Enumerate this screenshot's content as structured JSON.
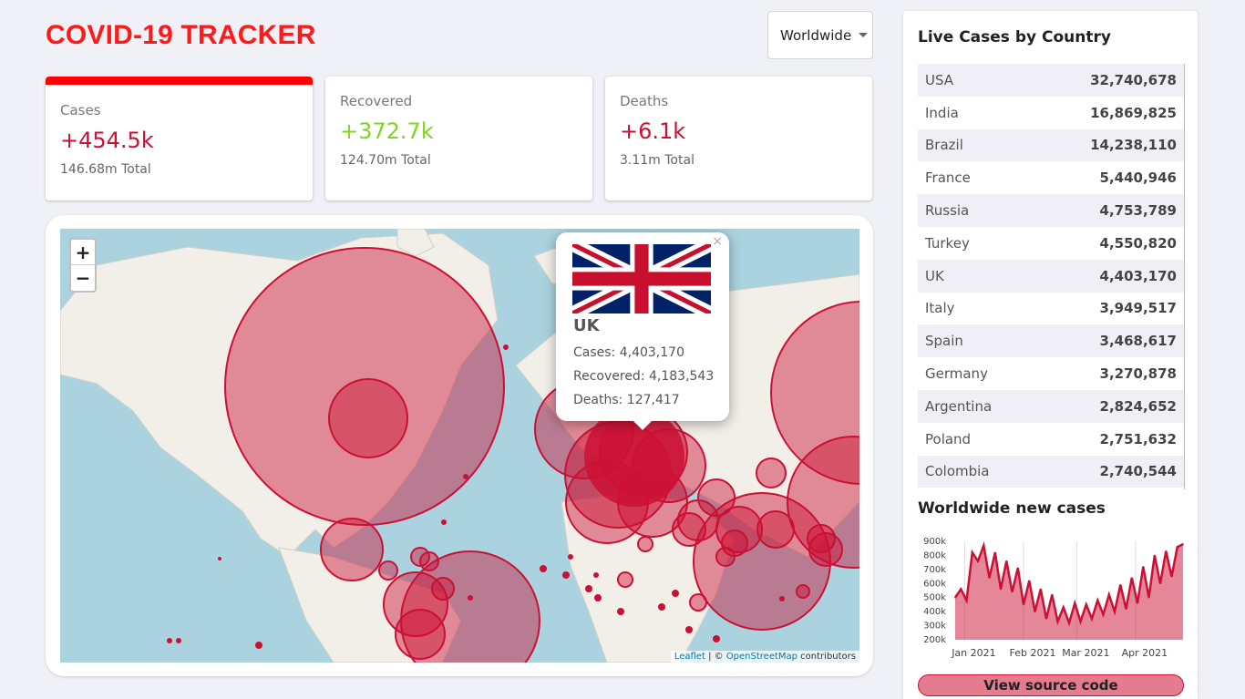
{
  "app": {
    "title": "COVID-19 TRACKER"
  },
  "dropdown": {
    "selected": "Worldwide"
  },
  "cards": [
    {
      "label": "Cases",
      "value": "+454.5k",
      "total": "146.68m Total"
    },
    {
      "label": "Recovered",
      "value": "+372.7k",
      "total": "124.70m Total"
    },
    {
      "label": "Deaths",
      "value": "+6.1k",
      "total": "3.11m Total"
    }
  ],
  "map": {
    "zoom_in": "+",
    "zoom_out": "−",
    "popup": {
      "close": "×",
      "country": "UK",
      "cases": "Cases: 4,403,170",
      "recovered": "Recovered: 4,183,543",
      "deaths": "Deaths: 127,417"
    },
    "attribution": {
      "leaflet": "Leaflet",
      "separator": " | © ",
      "osm": "OpenStreetMap",
      "suffix": " contributors"
    }
  },
  "sidebar": {
    "live_title": "Live Cases by Country",
    "countries": [
      {
        "name": "USA",
        "cases": "32,740,678"
      },
      {
        "name": "India",
        "cases": "16,869,825"
      },
      {
        "name": "Brazil",
        "cases": "14,238,110"
      },
      {
        "name": "France",
        "cases": "5,440,946"
      },
      {
        "name": "Russia",
        "cases": "4,753,789"
      },
      {
        "name": "Turkey",
        "cases": "4,550,820"
      },
      {
        "name": "UK",
        "cases": "4,403,170"
      },
      {
        "name": "Italy",
        "cases": "3,949,517"
      },
      {
        "name": "Spain",
        "cases": "3,468,617"
      },
      {
        "name": "Germany",
        "cases": "3,270,878"
      },
      {
        "name": "Argentina",
        "cases": "2,824,652"
      },
      {
        "name": "Poland",
        "cases": "2,751,632"
      },
      {
        "name": "Colombia",
        "cases": "2,740,544"
      }
    ],
    "chart_title": "Worldwide new cases",
    "source_button": "View source code"
  },
  "colors": {
    "accent": "#ff1a1a",
    "cases": "#cc1034",
    "recovered": "#7dd71d",
    "bubble": "#cc1034"
  },
  "chart_data": {
    "type": "area",
    "title": "Worldwide new cases",
    "xlabel": "",
    "ylabel": "",
    "x_ticks": [
      "Jan 2021",
      "Feb 2021",
      "Mar 2021",
      "Apr 2021"
    ],
    "y_ticks": [
      "200k",
      "300k",
      "400k",
      "500k",
      "600k",
      "700k",
      "800k",
      "900k"
    ],
    "ylim": [
      200000,
      900000
    ],
    "x": [
      "2020-12-27",
      "2020-12-30",
      "2021-01-02",
      "2021-01-05",
      "2021-01-08",
      "2021-01-11",
      "2021-01-14",
      "2021-01-17",
      "2021-01-20",
      "2021-01-23",
      "2021-01-26",
      "2021-01-29",
      "2021-02-01",
      "2021-02-04",
      "2021-02-07",
      "2021-02-10",
      "2021-02-13",
      "2021-02-16",
      "2021-02-19",
      "2021-02-22",
      "2021-02-25",
      "2021-02-28",
      "2021-03-03",
      "2021-03-06",
      "2021-03-09",
      "2021-03-12",
      "2021-03-15",
      "2021-03-18",
      "2021-03-21",
      "2021-03-24",
      "2021-03-27",
      "2021-03-30",
      "2021-04-02",
      "2021-04-05",
      "2021-04-08",
      "2021-04-11",
      "2021-04-14",
      "2021-04-17",
      "2021-04-20",
      "2021-04-23",
      "2021-04-26"
    ],
    "series": [
      {
        "values": [
          500000,
          560000,
          480000,
          820000,
          760000,
          870000,
          640000,
          820000,
          560000,
          760000,
          540000,
          710000,
          450000,
          620000,
          400000,
          560000,
          350000,
          520000,
          330000,
          430000,
          320000,
          460000,
          330000,
          450000,
          350000,
          480000,
          380000,
          520000,
          400000,
          590000,
          420000,
          640000,
          460000,
          720000,
          500000,
          800000,
          600000,
          830000,
          650000,
          860000,
          880000
        ]
      }
    ]
  }
}
